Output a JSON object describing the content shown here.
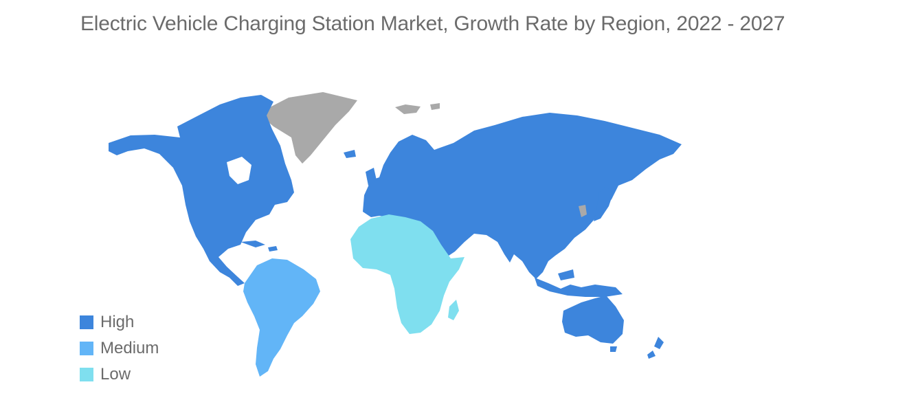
{
  "title": "Electric Vehicle Charging Station Market, Growth Rate by Region, 2022 - 2027",
  "colors": {
    "high": "#3d85dc",
    "medium": "#62b5f7",
    "low": "#7fdfef",
    "no_data": "#a9a9a9"
  },
  "legend": [
    {
      "label": "High",
      "color": "#3d85dc"
    },
    {
      "label": "Medium",
      "color": "#62b5f7"
    },
    {
      "label": "Low",
      "color": "#7fdfef"
    }
  ],
  "regions": [
    {
      "name": "North America",
      "level": "High"
    },
    {
      "name": "Europe",
      "level": "High"
    },
    {
      "name": "Asia-Pacific",
      "level": "High"
    },
    {
      "name": "Middle East",
      "level": "High"
    },
    {
      "name": "South America",
      "level": "Medium"
    },
    {
      "name": "Africa",
      "level": "Low"
    }
  ]
}
